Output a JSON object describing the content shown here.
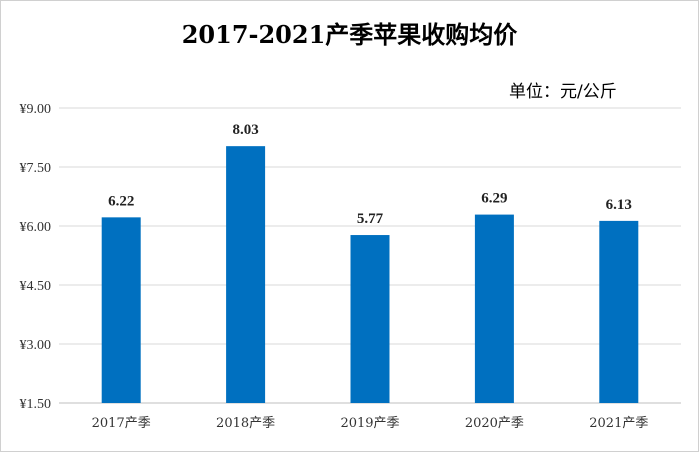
{
  "chart_data": {
    "type": "bar",
    "title": "2017-2021产季苹果收购均价",
    "unit_label": "单位：元/公斤",
    "xlabel": "",
    "ylabel": "",
    "categories": [
      "2017产季",
      "2018产季",
      "2019产季",
      "2020产季",
      "2021产季"
    ],
    "values": [
      6.22,
      8.03,
      5.77,
      6.29,
      6.13
    ],
    "data_labels": [
      "6.22",
      "8.03",
      "5.77",
      "6.29",
      "6.13"
    ],
    "yticks": [
      1.5,
      3.0,
      4.5,
      6.0,
      7.5,
      9.0
    ],
    "ytick_labels": [
      "¥1.50",
      "¥3.00",
      "¥4.50",
      "¥6.00",
      "¥7.50",
      "¥9.00"
    ],
    "ylim": [
      1.5,
      9.0
    ],
    "grid": true,
    "bar_color": "#0070c0",
    "grid_color": "#d9d9d9"
  }
}
